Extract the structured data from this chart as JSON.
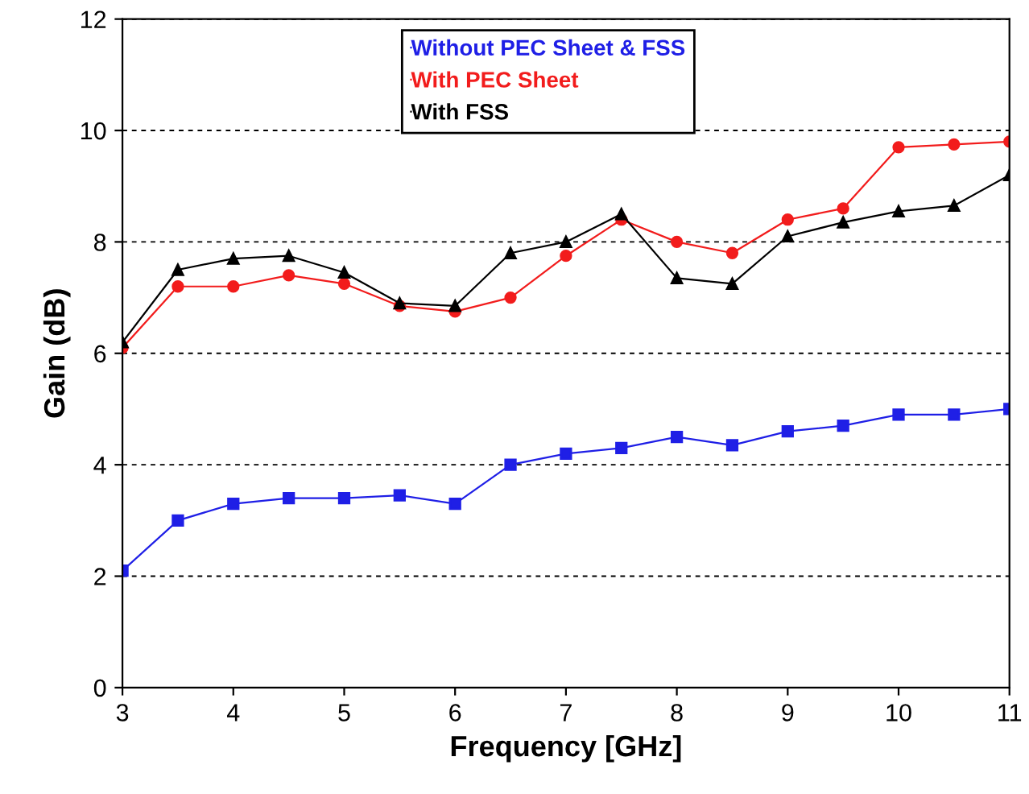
{
  "chart_data": {
    "type": "line",
    "xlabel": "Frequency [GHz]",
    "ylabel": "Gain (dB)",
    "x": [
      3,
      3.5,
      4,
      4.5,
      5,
      5.5,
      6,
      6.5,
      7,
      7.5,
      8,
      8.5,
      9,
      9.5,
      10,
      10.5,
      11
    ],
    "series": [
      {
        "name": "Without PEC Sheet & FSS",
        "color": "#1f1fe6",
        "marker": "square",
        "values": [
          2.1,
          3.0,
          3.3,
          3.4,
          3.4,
          3.45,
          3.3,
          4.0,
          4.2,
          4.3,
          4.5,
          4.35,
          4.6,
          4.7,
          4.9,
          4.9,
          5.0
        ]
      },
      {
        "name": "With PEC Sheet",
        "color": "#f21c1c",
        "marker": "circle",
        "values": [
          6.1,
          7.2,
          7.2,
          7.4,
          7.25,
          6.85,
          6.75,
          7.0,
          7.75,
          8.4,
          8.0,
          7.8,
          8.4,
          8.6,
          9.7,
          9.75,
          9.8
        ]
      },
      {
        "name": "With FSS",
        "color": "#000000",
        "marker": "triangle",
        "values": [
          6.2,
          7.5,
          7.7,
          7.75,
          7.45,
          6.9,
          6.85,
          7.8,
          8.0,
          8.5,
          7.35,
          7.25,
          8.1,
          8.35,
          8.55,
          8.65,
          9.2
        ]
      }
    ],
    "xlim": [
      3,
      11
    ],
    "xticks": [
      3,
      4,
      5,
      6,
      7,
      8,
      9,
      10,
      11
    ],
    "ylim": [
      0,
      12
    ],
    "yticks": [
      0,
      2,
      4,
      6,
      8,
      10,
      12
    ],
    "grid": "y",
    "legend": "top",
    "line_style": "solid"
  }
}
